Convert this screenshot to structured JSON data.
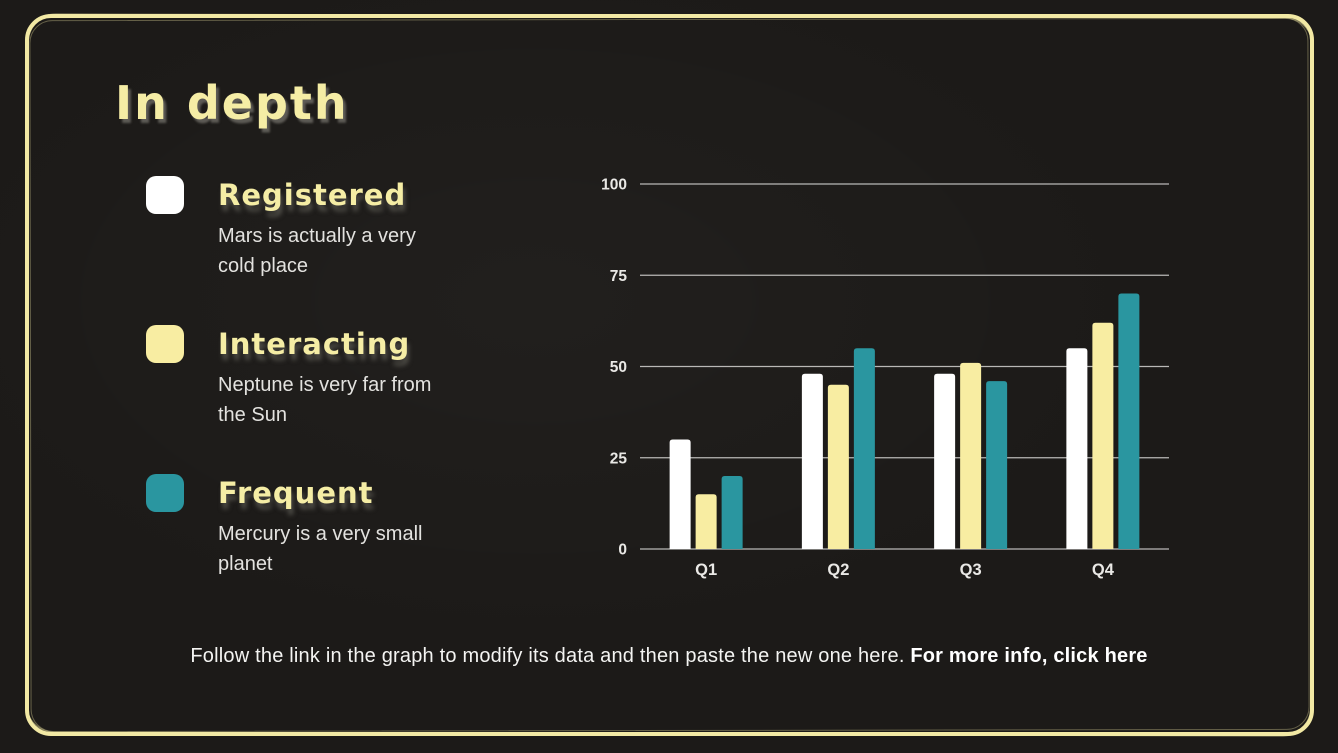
{
  "slide": {
    "title": "In depth",
    "footer": {
      "text": "Follow the link in the graph to modify its data and then paste the new one here.",
      "link_text": "For more info, click here"
    }
  },
  "legend": {
    "items": [
      {
        "label": "Registered",
        "description": "Mars is actually a very cold place",
        "color": "#ffffff"
      },
      {
        "label": "Interacting",
        "description": "Neptune is very far from the Sun",
        "color": "#f8eda2"
      },
      {
        "label": "Frequent",
        "description": "Mercury is a very small planet",
        "color": "#2a96a0"
      }
    ]
  },
  "chart_data": {
    "type": "bar",
    "title": "",
    "xlabel": "",
    "ylabel": "",
    "categories": [
      "Q1",
      "Q2",
      "Q3",
      "Q4"
    ],
    "series": [
      {
        "name": "Registered",
        "color": "#ffffff",
        "values": [
          30,
          48,
          48,
          55
        ]
      },
      {
        "name": "Interacting",
        "color": "#f8eda2",
        "values": [
          15,
          45,
          51,
          62
        ]
      },
      {
        "name": "Frequent",
        "color": "#2a96a0",
        "values": [
          20,
          55,
          46,
          70
        ]
      }
    ],
    "ylim": [
      0,
      100
    ],
    "yticks": [
      0,
      25,
      50,
      75,
      100
    ],
    "grid": true,
    "legend_position": "left-panel"
  },
  "theme": {
    "background": "#1c1a18",
    "border_color": "#f2e9a4",
    "accent_text": "#f5eda5",
    "body_text": "#e3e2df",
    "grid_color": "#b9b8b6",
    "tick_text": "#eae9e6"
  }
}
